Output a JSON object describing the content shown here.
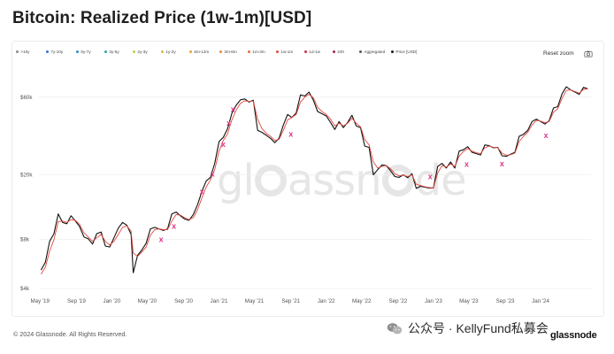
{
  "title": "Bitcoin: Realized Price (1w-1m)[USD]",
  "legend": [
    {
      "label": ">10y",
      "color": "#8a8a8a"
    },
    {
      "label": "7y-10y",
      "color": "#3b6fd6"
    },
    {
      "label": "5y-7y",
      "color": "#2d8cc9"
    },
    {
      "label": "3y-5y",
      "color": "#29a5a3"
    },
    {
      "label": "2y-3y",
      "color": "#c8c84a"
    },
    {
      "label": "1y-2y",
      "color": "#e0b83e"
    },
    {
      "label": "6m-12m",
      "color": "#e8a23a"
    },
    {
      "label": "3m-6m",
      "color": "#e98a35"
    },
    {
      "label": "1m-3m",
      "color": "#ec6f3a"
    },
    {
      "label": "1w-1m",
      "color": "#e4473f"
    },
    {
      "label": "1d-1w",
      "color": "#c92d4e"
    },
    {
      "label": "24h",
      "color": "#a71f5a"
    },
    {
      "label": "Aggregated",
      "color": "#555555"
    },
    {
      "label": "Price [USD]",
      "color": "#111111"
    }
  ],
  "toolbar": {
    "reset_zoom": "Reset zoom"
  },
  "watermark": {
    "part1": "gl",
    "part2": "assn",
    "part3": "de"
  },
  "footer": {
    "copyright": "© 2024 Glassnode. All Rights Reserved.",
    "wechat": "公众号 · KellyFund私募会",
    "brand": "glassnode"
  },
  "chart_data": {
    "type": "line",
    "title": "Bitcoin: Realized Price (1w-1m)[USD]",
    "y_scale": "log",
    "ylim": [
      4000,
      75000
    ],
    "y_ticks": [
      {
        "value": 4000,
        "label": "$4k"
      },
      {
        "value": 8000,
        "label": "$8k"
      },
      {
        "value": 20000,
        "label": "$20k"
      },
      {
        "value": 60000,
        "label": "$60k"
      }
    ],
    "xlim": [
      2019.32,
      2024.47
    ],
    "x_ticks": [
      {
        "value": 2019.33,
        "label": "May '19"
      },
      {
        "value": 2019.67,
        "label": "Sep '19"
      },
      {
        "value": 2020.0,
        "label": "Jan '20"
      },
      {
        "value": 2020.33,
        "label": "May '20"
      },
      {
        "value": 2020.67,
        "label": "Sep '20"
      },
      {
        "value": 2021.0,
        "label": "Jan '21"
      },
      {
        "value": 2021.33,
        "label": "May '21"
      },
      {
        "value": 2021.67,
        "label": "Sep '21"
      },
      {
        "value": 2022.0,
        "label": "Jan '22"
      },
      {
        "value": 2022.33,
        "label": "May '22"
      },
      {
        "value": 2022.67,
        "label": "Sep '22"
      },
      {
        "value": 2023.0,
        "label": "Jan '23"
      },
      {
        "value": 2023.33,
        "label": "May '23"
      },
      {
        "value": 2023.67,
        "label": "Sep '23"
      },
      {
        "value": 2024.0,
        "label": "Jan '24"
      }
    ],
    "series": [
      {
        "name": "Price [USD]",
        "color": "#111111",
        "x": [
          2019.34,
          2019.38,
          2019.42,
          2019.46,
          2019.5,
          2019.54,
          2019.58,
          2019.62,
          2019.66,
          2019.7,
          2019.74,
          2019.78,
          2019.82,
          2019.86,
          2019.9,
          2019.94,
          2019.98,
          2020.02,
          2020.06,
          2020.1,
          2020.14,
          2020.18,
          2020.2,
          2020.24,
          2020.28,
          2020.32,
          2020.36,
          2020.4,
          2020.44,
          2020.48,
          2020.52,
          2020.56,
          2020.6,
          2020.64,
          2020.68,
          2020.72,
          2020.76,
          2020.8,
          2020.84,
          2020.88,
          2020.92,
          2020.96,
          2021.0,
          2021.04,
          2021.08,
          2021.12,
          2021.16,
          2021.2,
          2021.24,
          2021.28,
          2021.32,
          2021.36,
          2021.4,
          2021.44,
          2021.48,
          2021.52,
          2021.56,
          2021.6,
          2021.64,
          2021.68,
          2021.72,
          2021.76,
          2021.8,
          2021.84,
          2021.88,
          2021.92,
          2021.96,
          2022.0,
          2022.04,
          2022.08,
          2022.12,
          2022.16,
          2022.2,
          2022.24,
          2022.28,
          2022.32,
          2022.36,
          2022.4,
          2022.44,
          2022.48,
          2022.52,
          2022.56,
          2022.6,
          2022.64,
          2022.68,
          2022.72,
          2022.76,
          2022.8,
          2022.84,
          2022.88,
          2022.92,
          2022.96,
          2023.0,
          2023.04,
          2023.08,
          2023.12,
          2023.16,
          2023.2,
          2023.24,
          2023.28,
          2023.32,
          2023.36,
          2023.4,
          2023.44,
          2023.48,
          2023.52,
          2023.56,
          2023.6,
          2023.64,
          2023.68,
          2023.72,
          2023.76,
          2023.8,
          2023.84,
          2023.88,
          2023.92,
          2023.96,
          2024.0,
          2024.04,
          2024.08,
          2024.12,
          2024.16,
          2024.2,
          2024.24,
          2024.28,
          2024.32,
          2024.36,
          2024.4,
          2024.44
        ],
        "y": [
          5200,
          5800,
          7800,
          8700,
          11500,
          10200,
          10000,
          11200,
          10400,
          9600,
          8300,
          8100,
          7500,
          8700,
          8900,
          7300,
          7200,
          8200,
          9400,
          10200,
          9800,
          8600,
          5000,
          6400,
          6900,
          7600,
          9300,
          9500,
          9300,
          9100,
          9300,
          11500,
          11800,
          11200,
          10700,
          10500,
          11400,
          13100,
          15800,
          18300,
          19300,
          23500,
          32000,
          34000,
          38500,
          47800,
          53500,
          57800,
          58500,
          56000,
          57500,
          37500,
          36500,
          35000,
          33500,
          31500,
          33500,
          40500,
          47000,
          45000,
          48000,
          62000,
          61000,
          64500,
          57500,
          49000,
          47500,
          46000,
          42000,
          38000,
          42500,
          39000,
          42000,
          46500,
          40000,
          39000,
          30000,
          29500,
          20000,
          21500,
          23000,
          22800,
          21200,
          19500,
          19300,
          20000,
          19200,
          20300,
          16500,
          17000,
          16800,
          16600,
          16600,
          22500,
          23500,
          22000,
          24000,
          22000,
          28000,
          28500,
          29800,
          27500,
          27000,
          26500,
          30500,
          30200,
          29300,
          29500,
          26200,
          26000,
          26800,
          27500,
          34500,
          35500,
          37500,
          42500,
          44000,
          42500,
          41000,
          43000,
          51500,
          52500,
          63000,
          69500,
          66500,
          64500,
          62500,
          69000,
          67500
        ],
        "log": true
      },
      {
        "name": "1w-1m",
        "color": "#e4473f",
        "x": [
          2019.34,
          2019.38,
          2019.42,
          2019.46,
          2019.5,
          2019.54,
          2019.58,
          2019.62,
          2019.66,
          2019.7,
          2019.74,
          2019.78,
          2019.82,
          2019.86,
          2019.9,
          2019.94,
          2019.98,
          2020.02,
          2020.06,
          2020.1,
          2020.14,
          2020.18,
          2020.2,
          2020.24,
          2020.28,
          2020.32,
          2020.36,
          2020.4,
          2020.44,
          2020.48,
          2020.52,
          2020.56,
          2020.6,
          2020.64,
          2020.68,
          2020.72,
          2020.76,
          2020.8,
          2020.84,
          2020.88,
          2020.92,
          2020.96,
          2021.0,
          2021.04,
          2021.08,
          2021.12,
          2021.16,
          2021.2,
          2021.24,
          2021.28,
          2021.32,
          2021.36,
          2021.4,
          2021.44,
          2021.48,
          2021.52,
          2021.56,
          2021.6,
          2021.64,
          2021.68,
          2021.72,
          2021.76,
          2021.8,
          2021.84,
          2021.88,
          2021.92,
          2021.96,
          2022.0,
          2022.04,
          2022.08,
          2022.12,
          2022.16,
          2022.2,
          2022.24,
          2022.28,
          2022.32,
          2022.36,
          2022.4,
          2022.44,
          2022.48,
          2022.52,
          2022.56,
          2022.6,
          2022.64,
          2022.68,
          2022.72,
          2022.76,
          2022.8,
          2022.84,
          2022.88,
          2022.92,
          2022.96,
          2023.0,
          2023.04,
          2023.08,
          2023.12,
          2023.16,
          2023.2,
          2023.24,
          2023.28,
          2023.32,
          2023.36,
          2023.4,
          2023.44,
          2023.48,
          2023.52,
          2023.56,
          2023.6,
          2023.64,
          2023.68,
          2023.72,
          2023.76,
          2023.8,
          2023.84,
          2023.88,
          2023.92,
          2023.96,
          2024.0,
          2024.04,
          2024.08,
          2024.12,
          2024.16,
          2024.2,
          2024.24,
          2024.28,
          2024.32,
          2024.36,
          2024.4,
          2024.44
        ],
        "y": [
          4900,
          5400,
          6800,
          8000,
          10300,
          10400,
          10200,
          10600,
          10500,
          9900,
          8800,
          8300,
          7800,
          8200,
          8600,
          7800,
          7400,
          7800,
          8600,
          9500,
          9700,
          9000,
          6600,
          6300,
          6700,
          7200,
          8500,
          9200,
          9300,
          9200,
          9200,
          10400,
          11400,
          11300,
          10900,
          10600,
          10900,
          12200,
          14400,
          16800,
          18600,
          21500,
          28000,
          32500,
          35800,
          43500,
          50000,
          55000,
          57000,
          56500,
          56800,
          44000,
          38500,
          36000,
          34500,
          32500,
          33000,
          37500,
          43500,
          45000,
          47000,
          56000,
          60000,
          62500,
          59500,
          52000,
          49000,
          47000,
          44000,
          40000,
          41500,
          40000,
          41500,
          44500,
          41500,
          39500,
          33000,
          30500,
          24000,
          22000,
          22500,
          22800,
          21800,
          20300,
          19700,
          19900,
          19500,
          20000,
          17500,
          17200,
          16900,
          16700,
          16600,
          20500,
          22800,
          22300,
          23300,
          22500,
          26000,
          27800,
          29000,
          28000,
          27300,
          27000,
          29300,
          30000,
          29500,
          29400,
          27200,
          26400,
          26600,
          27200,
          32000,
          34500,
          36500,
          40500,
          43200,
          42800,
          41800,
          42500,
          48500,
          51000,
          59000,
          66000,
          66500,
          65000,
          63500,
          67000,
          67500
        ],
        "log": true
      }
    ],
    "annotations": [
      {
        "label": "x",
        "x": 2020.46,
        "y": 8000
      },
      {
        "label": "x",
        "x": 2020.58,
        "y": 9700
      },
      {
        "label": "x",
        "x": 2020.84,
        "y": 15800
      },
      {
        "label": "x",
        "x": 2020.94,
        "y": 20200
      },
      {
        "label": "x",
        "x": 2021.04,
        "y": 30800
      },
      {
        "label": "x",
        "x": 2021.09,
        "y": 41500
      },
      {
        "label": "x",
        "x": 2021.13,
        "y": 50500
      },
      {
        "label": "x",
        "x": 2021.67,
        "y": 35500
      },
      {
        "label": "x",
        "x": 2022.97,
        "y": 19500
      },
      {
        "label": "x",
        "x": 2023.31,
        "y": 23200
      },
      {
        "label": "x",
        "x": 2023.64,
        "y": 23400
      },
      {
        "label": "x",
        "x": 2024.05,
        "y": 35000
      }
    ],
    "grid": true,
    "legend_placement": "top-left"
  }
}
